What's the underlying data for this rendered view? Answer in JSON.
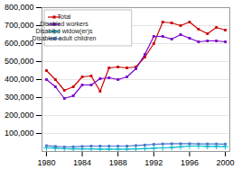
{
  "chart_data": {
    "type": "line",
    "x": [
      1980,
      1981,
      1982,
      1983,
      1984,
      1985,
      1986,
      1987,
      1988,
      1989,
      1990,
      1991,
      1992,
      1993,
      1994,
      1995,
      1996,
      1997,
      1998,
      1999,
      2000
    ],
    "series": [
      {
        "name": "Total",
        "color": "#cc0000",
        "marker": "square",
        "values": [
          450000,
          400000,
          340000,
          360000,
          415000,
          420000,
          335000,
          465000,
          470000,
          465000,
          470000,
          525000,
          600000,
          720000,
          715000,
          700000,
          720000,
          680000,
          655000,
          690000,
          675000
        ]
      },
      {
        "name": "Disabled workers",
        "color": "#7b00cc",
        "marker": "square",
        "values": [
          400000,
          360000,
          295000,
          310000,
          370000,
          370000,
          405000,
          410000,
          400000,
          415000,
          460000,
          540000,
          640000,
          640000,
          625000,
          650000,
          630000,
          610000,
          615000,
          615000,
          610000
        ]
      },
      {
        "name": "Disabled widow(er)s",
        "color": "#00bbcc",
        "marker": "plus",
        "values": [
          20000,
          18000,
          15000,
          14000,
          14000,
          14000,
          13000,
          13000,
          13000,
          13000,
          14000,
          16000,
          18000,
          20000,
          22000,
          26000,
          30000,
          30000,
          28000,
          28000,
          27000
        ]
      },
      {
        "name": "Disabled adult children",
        "color": "#4477cc",
        "marker": "square",
        "values": [
          32000,
          28000,
          25000,
          26000,
          28000,
          30000,
          30000,
          30000,
          30000,
          30000,
          33000,
          36000,
          40000,
          42000,
          43000,
          43000,
          43000,
          42000,
          42000,
          42000,
          41000
        ]
      }
    ],
    "xlim": [
      1979.5,
      2000.5
    ],
    "xticks": [
      1980,
      1984,
      1988,
      1992,
      1996,
      2000
    ],
    "ylim": [
      0,
      800000
    ],
    "yticks": [
      {
        "value": 100000,
        "label": "100,000"
      },
      {
        "value": 200000,
        "label": "200,000"
      },
      {
        "value": 300000,
        "label": "300,000"
      },
      {
        "value": 400000,
        "label": "400,000"
      },
      {
        "value": 500000,
        "label": "500,000"
      },
      {
        "value": 600000,
        "label": "600,000"
      },
      {
        "value": 700000,
        "label": "700,000"
      },
      {
        "value": 800000,
        "label": "800,000"
      }
    ],
    "grid": "y",
    "legend": "upper left"
  }
}
